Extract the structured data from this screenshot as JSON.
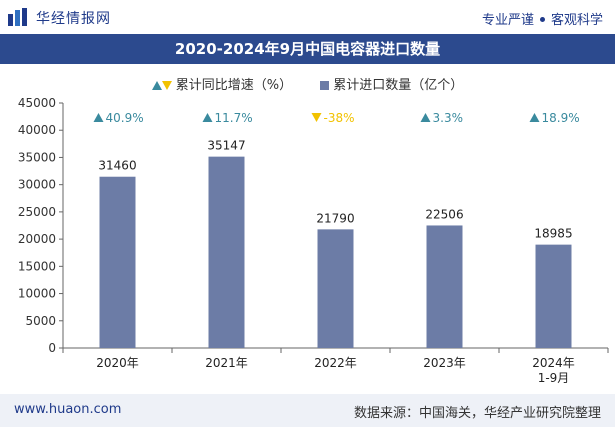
{
  "header": {
    "brand": "华经情报网",
    "slogan_left": "专业严谨",
    "slogan_right": "客观科学"
  },
  "chart_data": {
    "type": "bar",
    "title": "2020-2024年9月中国电容器进口数量",
    "legend": {
      "growth_label": "累计同比增速（%）",
      "bar_label": "累计进口数量（亿个）"
    },
    "categories": [
      "2020年",
      "2021年",
      "2022年",
      "2023年",
      "2024年\n1-9月"
    ],
    "values": [
      31460,
      35147,
      21790,
      22506,
      18985
    ],
    "growth": [
      "40.9%",
      "11.7%",
      "-38%",
      "3.3%",
      "18.9%"
    ],
    "growth_direction": [
      "up",
      "up",
      "down",
      "up",
      "up"
    ],
    "ylim": [
      0,
      45000
    ],
    "yticks": [
      0,
      5000,
      10000,
      15000,
      20000,
      25000,
      30000,
      35000,
      40000,
      45000
    ],
    "colors": {
      "bar": "#6c7ca6",
      "up": "#3a8a9e",
      "down": "#f2c200",
      "title_bg": "#2c4a8e"
    }
  },
  "footer": {
    "site": "www.huaon.com",
    "source": "数据来源：中国海关，华经产业研究院整理"
  }
}
